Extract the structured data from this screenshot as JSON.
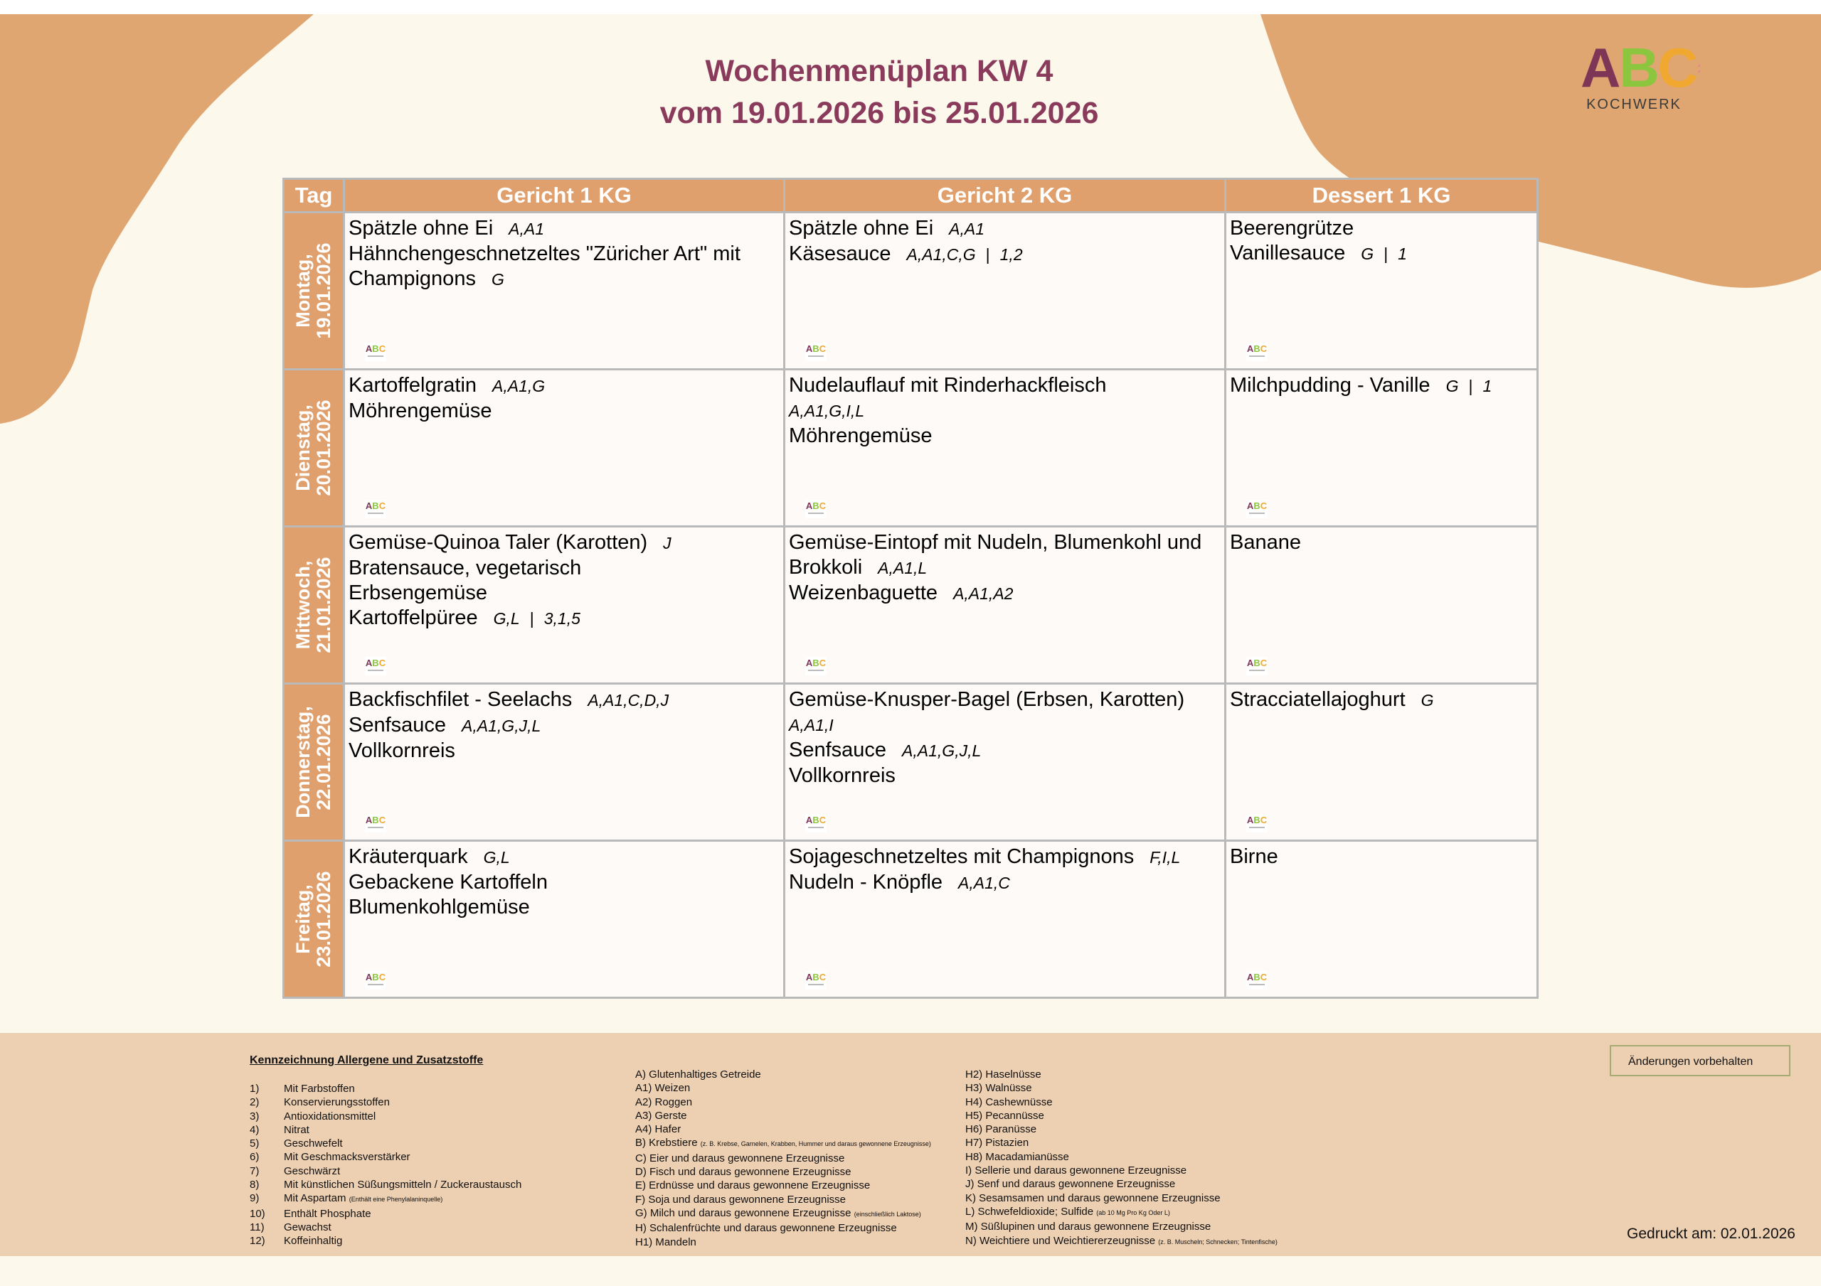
{
  "header": {
    "title_line1": "Wochenmenüplan KW 4",
    "title_line2": "vom 19.01.2026 bis 25.01.2026",
    "logo_text": "ABC",
    "logo_subtitle": "KOCHWERK"
  },
  "colors": {
    "accent": "#dfa06e",
    "title": "#8a3a5a",
    "footer_bg": "#edcfb2",
    "page_bg": "#fcf8ec"
  },
  "table": {
    "headers": [
      "Tag",
      "Gericht 1 KG",
      "Gericht 2 KG",
      "Dessert 1 KG"
    ],
    "days": [
      {
        "weekday": "Montag,",
        "date": "19.01.2026",
        "cells": [
          [
            {
              "name": "Spätzle ohne Ei",
              "allergens": "A,A1"
            },
            {
              "name": "Hähnchengeschnetzeltes \"Züricher Art\" mit Champignons",
              "allergens": "G"
            }
          ],
          [
            {
              "name": "Spätzle ohne Ei",
              "allergens": "A,A1"
            },
            {
              "name": "Käsesauce",
              "allergens": "A,A1,C,G",
              "additives": "1,2"
            }
          ],
          [
            {
              "name": "Beerengrütze"
            },
            {
              "name": "Vanillesauce",
              "allergens": "G",
              "additives": "1"
            }
          ]
        ]
      },
      {
        "weekday": "Dienstag,",
        "date": "20.01.2026",
        "cells": [
          [
            {
              "name": "Kartoffelgratin",
              "allergens": "A,A1,G"
            },
            {
              "name": "Möhrengemüse"
            }
          ],
          [
            {
              "name": "Nudelauflauf mit Rinderhackfleisch",
              "allergens": "A,A1,G,I,L",
              "wrap": true
            },
            {
              "name": "Möhrengemüse"
            }
          ],
          [
            {
              "name": "Milchpudding - Vanille",
              "allergens": "G",
              "additives": "1"
            }
          ]
        ]
      },
      {
        "weekday": "Mittwoch,",
        "date": "21.01.2026",
        "cells": [
          [
            {
              "name": "Gemüse-Quinoa Taler (Karotten)",
              "allergens": "J"
            },
            {
              "name": "Bratensauce, vegetarisch"
            },
            {
              "name": "Erbsengemüse"
            },
            {
              "name": "Kartoffelpüree",
              "allergens": "G,L",
              "additives": "3,1,5"
            }
          ],
          [
            {
              "name": "Gemüse-Eintopf mit Nudeln, Blumenkohl und Brokkoli",
              "allergens": "A,A1,L"
            },
            {
              "name": "Weizenbaguette",
              "allergens": "A,A1,A2"
            }
          ],
          [
            {
              "name": "Banane"
            }
          ]
        ]
      },
      {
        "weekday": "Donnerstag,",
        "date": "22.01.2026",
        "cells": [
          [
            {
              "name": "Backfischfilet - Seelachs",
              "allergens": "A,A1,C,D,J"
            },
            {
              "name": "Senfsauce",
              "allergens": "A,A1,G,J,L"
            },
            {
              "name": "Vollkornreis"
            }
          ],
          [
            {
              "name": "Gemüse-Knusper-Bagel (Erbsen, Karotten)",
              "allergens": "A,A1,I",
              "wrap": true
            },
            {
              "name": "Senfsauce",
              "allergens": "A,A1,G,J,L"
            },
            {
              "name": "Vollkornreis"
            }
          ],
          [
            {
              "name": "Stracciatellajoghurt",
              "allergens": "G"
            }
          ]
        ]
      },
      {
        "weekday": "Freitag,",
        "date": "23.01.2026",
        "cells": [
          [
            {
              "name": "Kräuterquark",
              "allergens": "G,L"
            },
            {
              "name": "Gebackene Kartoffeln"
            },
            {
              "name": "Blumenkohlgemüse"
            }
          ],
          [
            {
              "name": "Sojageschnetzeltes mit Champignons",
              "allergens": "F,I,L"
            },
            {
              "name": "Nudeln - Knöpfle",
              "allergens": "A,A1,C"
            }
          ],
          [
            {
              "name": "Birne"
            }
          ]
        ]
      }
    ]
  },
  "footer": {
    "heading": "Kennzeichnung Allergene und Zusatzstoffe",
    "additives": [
      {
        "num": "1)",
        "text": "Mit Farbstoffen"
      },
      {
        "num": "2)",
        "text": "Konservierungsstoffen"
      },
      {
        "num": "3)",
        "text": "Antioxidationsmittel"
      },
      {
        "num": "4)",
        "text": "Nitrat"
      },
      {
        "num": "5)",
        "text": "Geschwefelt"
      },
      {
        "num": "6)",
        "text": "Mit Geschmacksverstärker"
      },
      {
        "num": "7)",
        "text": "Geschwärzt"
      },
      {
        "num": "8)",
        "text": "Mit künstlichen Süßungsmitteln / Zuckeraustausch"
      },
      {
        "num": "9)",
        "text": "Mit Aspartam",
        "note": "(Enthält eine Phenylalaninquelle)"
      },
      {
        "num": "10)",
        "text": "Enthält Phosphate"
      },
      {
        "num": "11)",
        "text": "Gewachst"
      },
      {
        "num": "12)",
        "text": "Koffeinhaltig"
      }
    ],
    "allergens_col1": [
      {
        "text": "A) Glutenhaltiges Getreide"
      },
      {
        "text": "A1) Weizen"
      },
      {
        "text": "A2) Roggen"
      },
      {
        "text": "A3) Gerste"
      },
      {
        "text": "A4) Hafer"
      },
      {
        "text": "B) Krebstiere",
        "note": "(z. B. Krebse, Garnelen, Krabben, Hummer und daraus gewonnene Erzeugnisse)"
      },
      {
        "text": "C) Eier und daraus gewonnene Erzeugnisse"
      },
      {
        "text": "D) Fisch und daraus gewonnene Erzeugnisse"
      },
      {
        "text": "E) Erdnüsse und daraus gewonnene Erzeugnisse"
      },
      {
        "text": "F) Soja und daraus gewonnene Erzeugnisse"
      },
      {
        "text": "G) Milch und daraus gewonnene Erzeugnisse",
        "note": "(einschließlich Laktose)"
      },
      {
        "text": "H) Schalenfrüchte und daraus gewonnene Erzeugnisse"
      },
      {
        "text": "H1) Mandeln"
      }
    ],
    "allergens_col2": [
      {
        "text": "H2) Haselnüsse"
      },
      {
        "text": "H3) Walnüsse"
      },
      {
        "text": "H4) Cashewnüsse"
      },
      {
        "text": "H5) Pecannüsse"
      },
      {
        "text": "H6) Paranüsse"
      },
      {
        "text": "H7) Pistazien"
      },
      {
        "text": "H8) Macadamianüsse"
      },
      {
        "text": "I) Sellerie und daraus gewonnene Erzeugnisse"
      },
      {
        "text": "J) Senf und daraus gewonnene Erzeugnisse"
      },
      {
        "text": "K) Sesamsamen und daraus gewonnene Erzeugnisse"
      },
      {
        "text": "L) Schwefeldioxide; Sulfide",
        "note": "(ab 10 Mg Pro Kg Oder L)"
      },
      {
        "text": "M) Süßlupinen und daraus gewonnene Erzeugnisse"
      },
      {
        "text": "N) Weichtiere und Weichtiererzeugnisse",
        "note": "(z. B. Muscheln; Schnecken; Tintenfische)"
      }
    ],
    "notice": "Änderungen vorbehalten",
    "printed": "Gedruckt am: 02.01.2026"
  }
}
